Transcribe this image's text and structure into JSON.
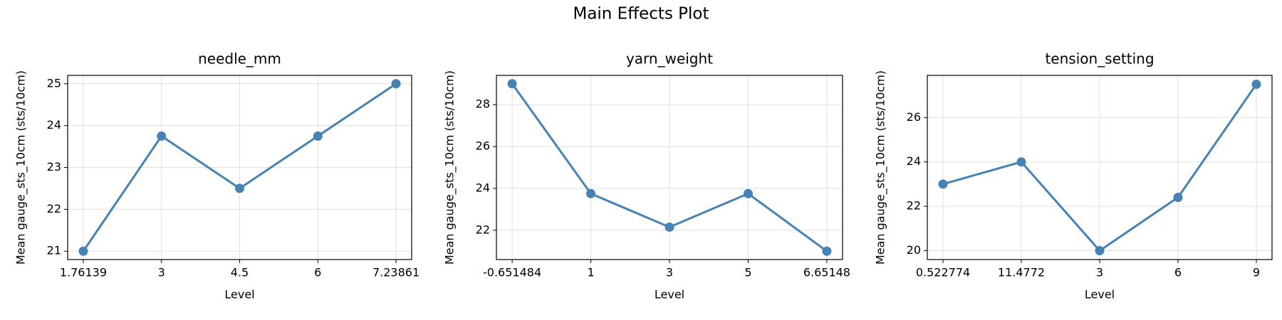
{
  "title": "Main Effects Plot",
  "chart_data": [
    {
      "type": "line",
      "title": "needle_mm",
      "xlabel": "Level",
      "ylabel": "Mean gauge_sts_10cm (sts/10cm)",
      "categories": [
        "1.76139",
        "3",
        "4.5",
        "6",
        "7.23861"
      ],
      "values": [
        21,
        23.75,
        22.5,
        23.75,
        25
      ],
      "color": "#4682b4",
      "ylim": [
        20.8,
        25.2
      ],
      "yticks": [
        21,
        22,
        23,
        24,
        25
      ],
      "grid": true
    },
    {
      "type": "line",
      "title": "yarn_weight",
      "xlabel": "Level",
      "ylabel": "Mean gauge_sts_10cm (sts/10cm)",
      "categories": [
        "-0.651484",
        "1",
        "3",
        "5",
        "6.65148"
      ],
      "values": [
        29,
        23.75,
        22.15,
        23.75,
        21
      ],
      "color": "#4682b4",
      "ylim": [
        20.6,
        29.4
      ],
      "yticks": [
        22,
        24,
        26,
        28
      ],
      "grid": true
    },
    {
      "type": "line",
      "title": "tension_setting",
      "xlabel": "Level",
      "ylabel": "Mean gauge_sts_10cm (sts/10cm)",
      "categories": [
        "0.522774",
        "11.4772",
        "3",
        "6",
        "9"
      ],
      "values": [
        23,
        24,
        20,
        22.4,
        27.5
      ],
      "color": "#4682b4",
      "ylim": [
        19.6,
        27.9
      ],
      "yticks": [
        20,
        22,
        24,
        26
      ],
      "grid": true
    }
  ]
}
